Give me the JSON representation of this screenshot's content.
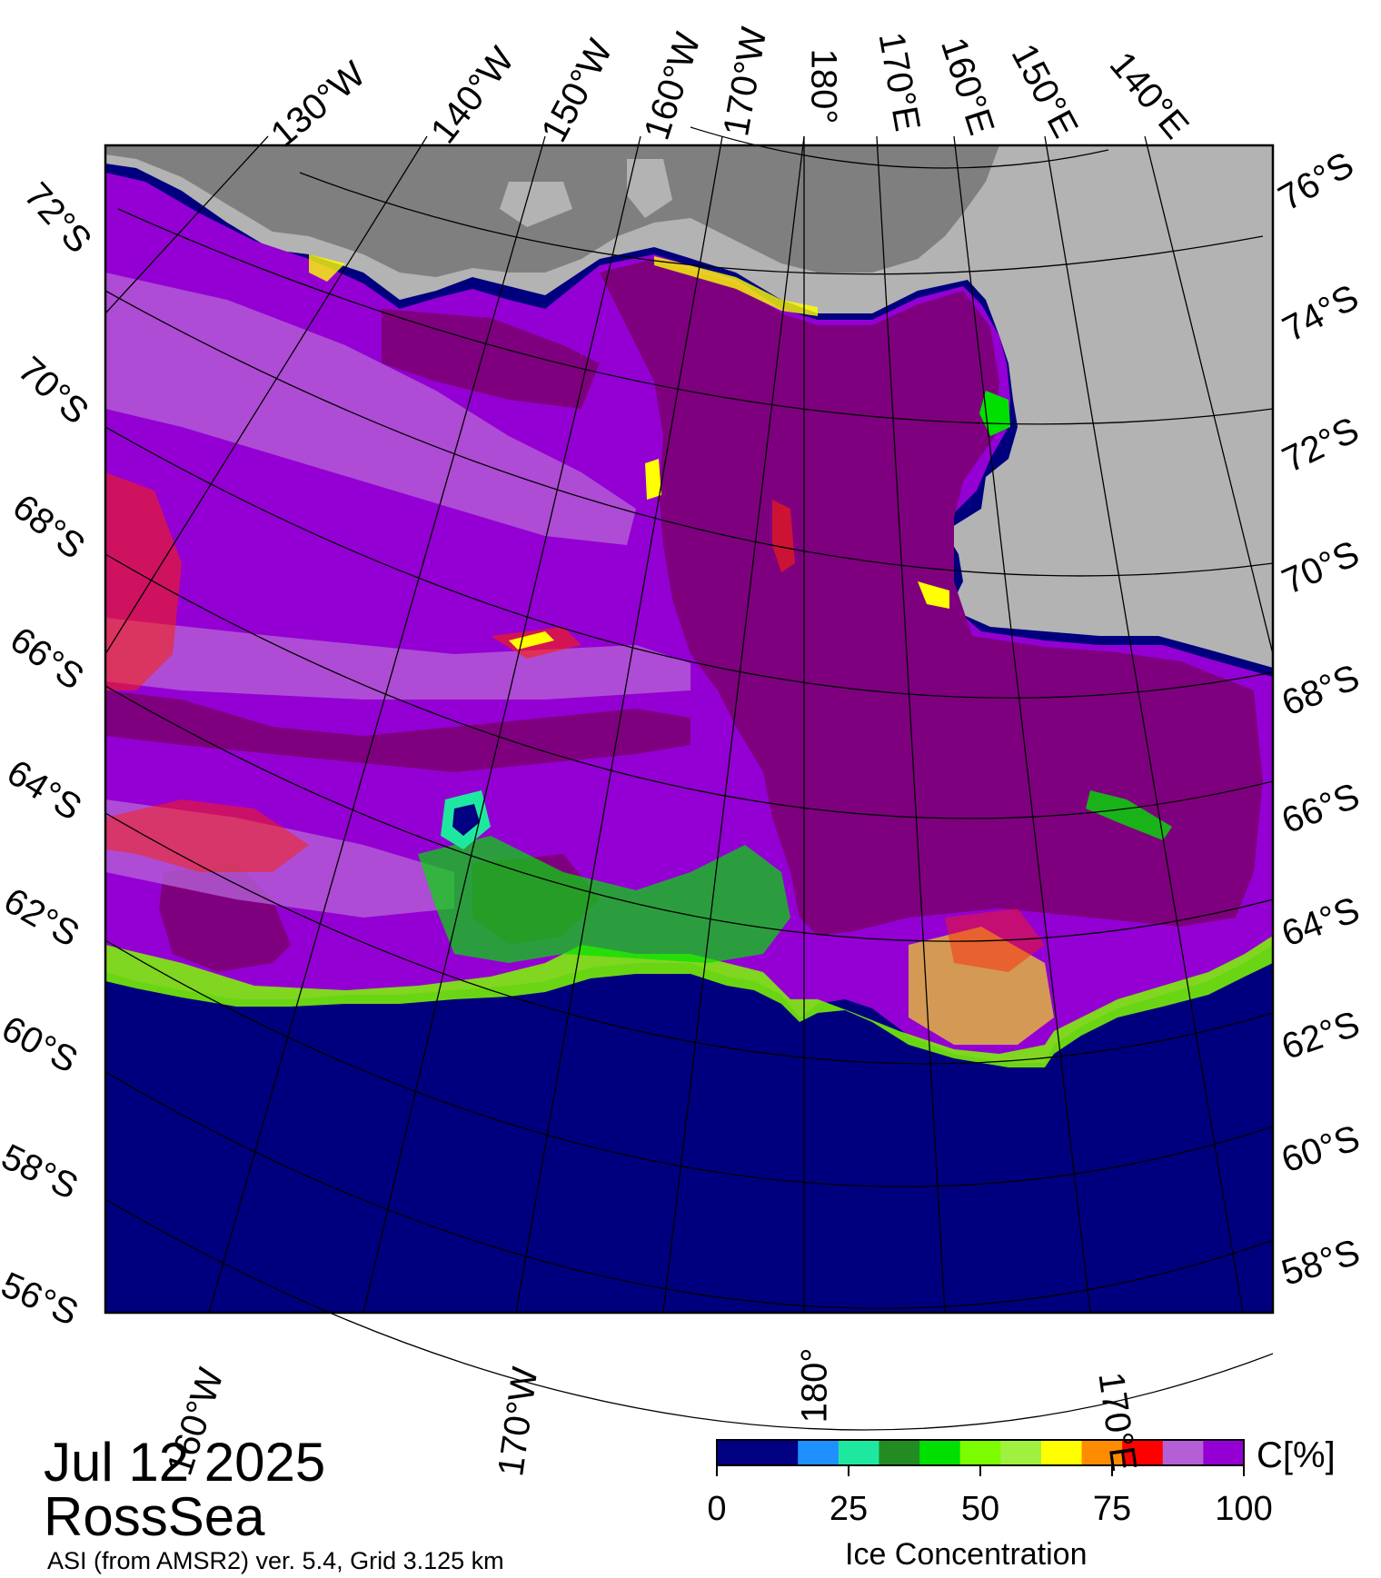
{
  "title": {
    "date": "Jul 12 2025",
    "region": "RossSea",
    "source": "ASI (from AMSR2) ver. 5.4,  Grid 3.125 km"
  },
  "graticule": {
    "top_longitudes": [
      "130°W",
      "140°W",
      "150°W",
      "160°W",
      "170°W",
      "180°",
      "170°E",
      "160°E",
      "150°E",
      "140°E"
    ],
    "bottom_longitudes": [
      "160°W",
      "170°W",
      "180°",
      "170°E"
    ],
    "left_latitudes": [
      "72°S",
      "70°S",
      "68°S",
      "66°S",
      "64°S",
      "62°S",
      "60°S",
      "58°S",
      "56°S"
    ],
    "right_latitudes": [
      "76°S",
      "74°S",
      "72°S",
      "70°S",
      "68°S",
      "66°S",
      "64°S",
      "62°S",
      "60°S",
      "58°S"
    ]
  },
  "colorbar": {
    "unit": "C[%]",
    "title": "Ice Concentration",
    "ticks": [
      "0",
      "25",
      "50",
      "75",
      "100"
    ],
    "colors": [
      "#000080",
      "#000080",
      "#1e90ff",
      "#1ee8a0",
      "#228b22",
      "#00e000",
      "#7cfc00",
      "#a0f040",
      "#ffff00",
      "#ff8c00",
      "#ff0000",
      "#b45fd6",
      "#9400d3"
    ]
  },
  "colors": {
    "open_water": "#00007f",
    "land": "#b3b3b3",
    "ice_shelf": "#7f7f7f",
    "ice_full": "#7f007f",
    "ice_high": "#9400d3",
    "ice_mid": "#b45fd6"
  }
}
